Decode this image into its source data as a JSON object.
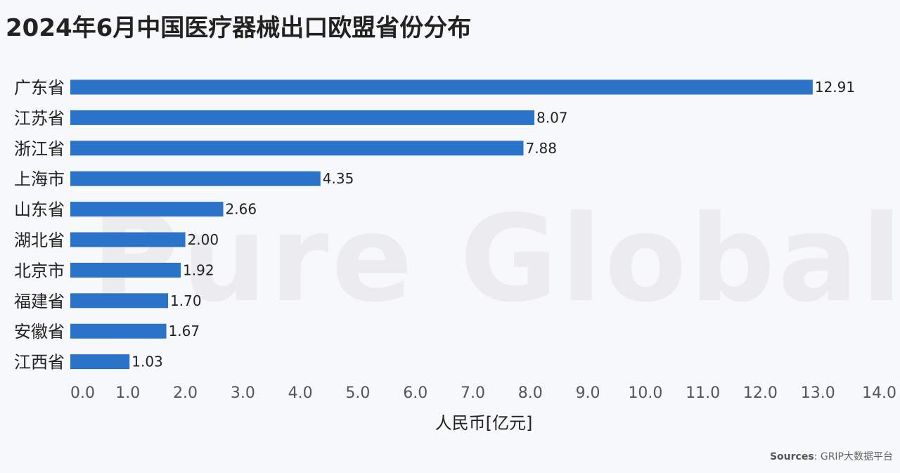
{
  "title": "2024年6月中国医疗器械出口欧盟省份分布",
  "watermark": "Pure Global",
  "source_label": "Sources",
  "source_text": ": GRIP大数据平台",
  "colors": {
    "bar": "#2b73c9",
    "text": "#222222",
    "tick": "#555555"
  },
  "chart_data": {
    "type": "bar",
    "orientation": "horizontal",
    "categories": [
      "广东省",
      "江苏省",
      "浙江省",
      "上海市",
      "山东省",
      "湖北省",
      "北京市",
      "福建省",
      "安徽省",
      "江西省"
    ],
    "values": [
      12.91,
      8.07,
      7.88,
      4.35,
      2.66,
      2.0,
      1.92,
      1.7,
      1.67,
      1.03
    ],
    "value_labels": [
      "12.91",
      "8.07",
      "7.88",
      "4.35",
      "2.66",
      "2.00",
      "1.92",
      "1.70",
      "1.67",
      "1.03"
    ],
    "xlabel": "人民币[亿元]",
    "xlim": [
      0,
      14
    ],
    "xticks": [
      "0.0",
      "1.0",
      "2.0",
      "3.0",
      "4.0",
      "5.0",
      "6.0",
      "7.0",
      "8.0",
      "9.0",
      "10.0",
      "11.0",
      "12.0",
      "13.0",
      "14.0"
    ],
    "grid": false
  }
}
